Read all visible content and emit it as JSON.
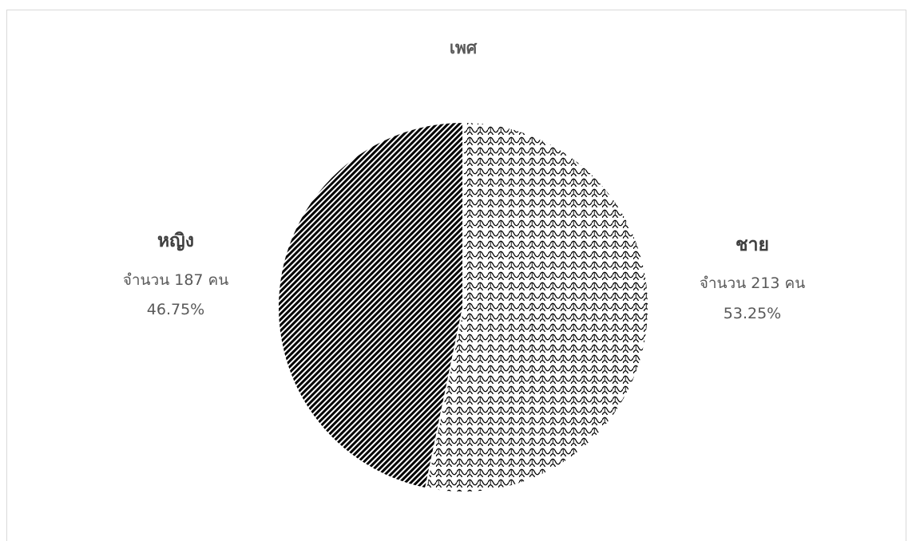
{
  "chart_data": {
    "type": "pie",
    "title": "เพศ",
    "categories": [
      "ชาย",
      "หญิง"
    ],
    "values": [
      213,
      187
    ],
    "percentages": [
      53.25,
      46.75
    ],
    "count_labels": [
      "จำนวน 213 คน",
      "จำนวน 187 คน"
    ],
    "percent_labels": [
      "53.25%",
      "46.75%"
    ],
    "legend": "none",
    "slice_patterns": [
      "scallop",
      "diagonal-stripes"
    ],
    "colors": {
      "pattern_ink": "#000000",
      "background": "#ffffff",
      "border": "#d9d9d9",
      "title": "#595959",
      "label": "#404040"
    }
  }
}
